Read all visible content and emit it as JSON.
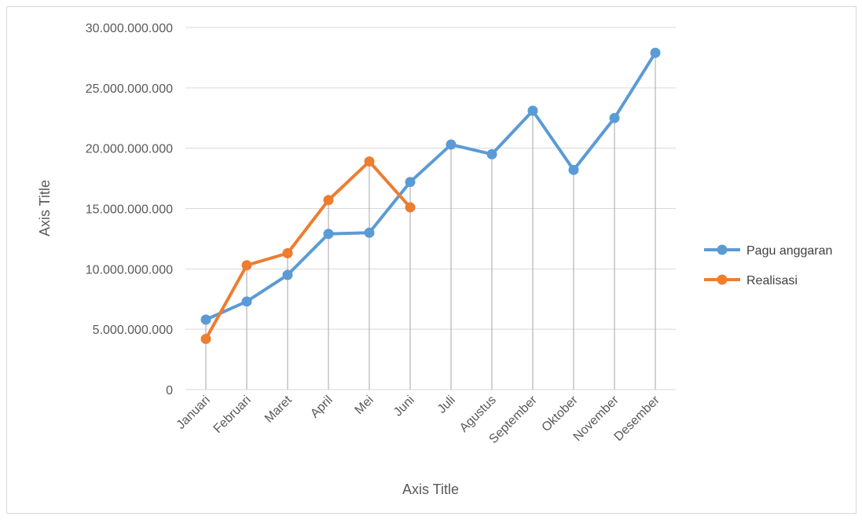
{
  "chart_data": {
    "type": "line",
    "title": "",
    "xlabel": "Axis Title",
    "ylabel": "Axis Title",
    "categories": [
      "Januari",
      "Februari",
      "Maret",
      "April",
      "Mei",
      "Juni",
      "Juli",
      "Agustus",
      "September",
      "Oktober",
      "November",
      "Desember"
    ],
    "ylim": [
      0,
      30000000000
    ],
    "yticks": [
      0,
      5000000000,
      10000000000,
      15000000000,
      20000000000,
      25000000000,
      30000000000
    ],
    "ytick_labels": [
      "0",
      "5.000.000.000",
      "10.000.000.000",
      "15.000.000.000",
      "20.000.000.000",
      "25.000.000.000",
      "30.000.000.000"
    ],
    "grid": "horizontal",
    "drop_lines": true,
    "legend_position": "right",
    "series": [
      {
        "name": "Pagu anggaran",
        "color": "#5B9BD5",
        "values": [
          5800000000,
          7300000000,
          9500000000,
          12900000000,
          13000000000,
          17200000000,
          20300000000,
          19500000000,
          23100000000,
          18200000000,
          22500000000,
          27900000000
        ]
      },
      {
        "name": "Realisasi",
        "color": "#ED7D31",
        "values": [
          4200000000,
          10300000000,
          11300000000,
          15700000000,
          18900000000,
          15100000000,
          null,
          null,
          null,
          null,
          null,
          null
        ]
      }
    ]
  }
}
